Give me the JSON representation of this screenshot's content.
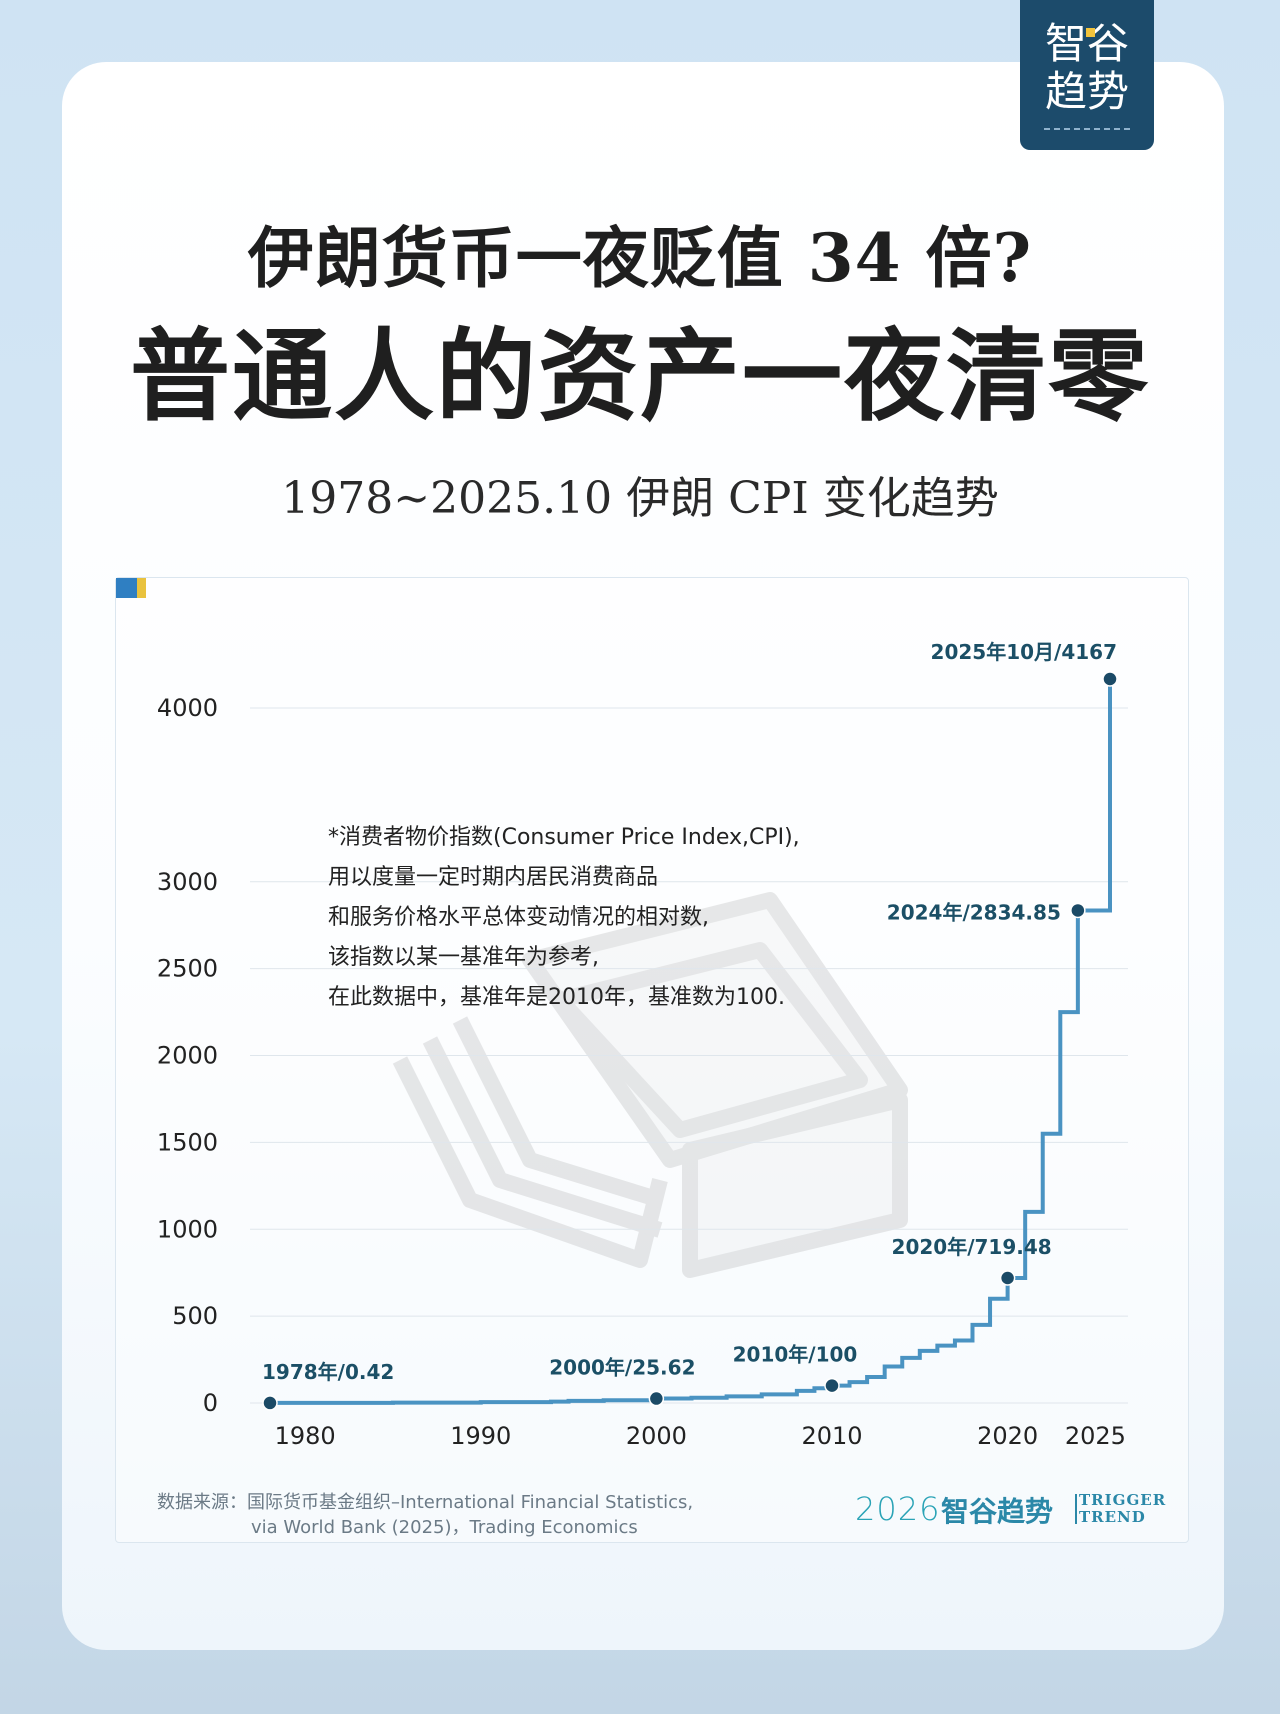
{
  "header": {
    "logo": {
      "line1": "智谷",
      "line2": "趋势"
    },
    "title_line1": "伊朗货币一夜贬值 34 倍?",
    "title_line2": "普通人的资产一夜清零",
    "subtitle": "1978~2025.10 伊朗 CPI 变化趋势"
  },
  "note": {
    "lines": [
      "*消费者物价指数(Consumer Price Index,CPI),",
      "用以度量一定时期内居民消费商品",
      "和服务价格水平总体变动情况的相对数,",
      "该指数以某一基准年为参考,",
      "在此数据中，基准年是2010年，基准数为100."
    ]
  },
  "footer": {
    "source_line1": "数据来源：国际货币基金组织–International Financial Statistics,",
    "source_line2": "via World Bank (2025)，Trading Economics",
    "brand_year": "2026",
    "brand_name": "智谷趋势",
    "brand_en_1": "TRIGGER",
    "brand_en_2": "TREND"
  },
  "colors": {
    "line": "#4a93c2",
    "marker": "#1b4a66",
    "label": "#1b4f66",
    "grid": "#dfe6ec",
    "accent": "#2f7fc2"
  },
  "chart_data": {
    "type": "line",
    "step": true,
    "title": "1978~2025.10 伊朗 CPI 变化趋势",
    "xlabel": "",
    "ylabel": "",
    "x_ticks": [
      1980,
      1990,
      2000,
      2010,
      2020,
      2025
    ],
    "x_tick_labels": [
      "1980",
      "1990",
      "2000",
      "2010",
      "2020",
      "2025"
    ],
    "y_ticks": [
      0,
      500,
      1000,
      1500,
      2000,
      2500,
      3000,
      4000
    ],
    "y_tick_labels": [
      "0",
      "500",
      "1000",
      "1500",
      "2000",
      "2500",
      "3000",
      "4000"
    ],
    "xlim": [
      1978,
      2025.83
    ],
    "ylim": [
      0,
      4167
    ],
    "grid": true,
    "x": [
      1978,
      1980,
      1985,
      1990,
      1994,
      1995,
      1997,
      2000,
      2002,
      2004,
      2006,
      2008,
      2009,
      2010,
      2011,
      2012,
      2013,
      2014,
      2015,
      2016,
      2017,
      2018,
      2019,
      2020,
      2021,
      2022,
      2023,
      2024,
      2025.83
    ],
    "values": [
      0.42,
      1,
      2,
      5,
      8,
      12,
      16,
      25.62,
      30,
      38,
      50,
      70,
      85,
      100,
      120,
      150,
      210,
      260,
      300,
      330,
      360,
      450,
      600,
      719.48,
      1100,
      1550,
      2250,
      2834.85,
      4167
    ],
    "highlights": [
      {
        "x": 1978,
        "y": 0.42,
        "label": "1978年/0.42"
      },
      {
        "x": 2000,
        "y": 25.62,
        "label": "2000年/25.62"
      },
      {
        "x": 2010,
        "y": 100,
        "label": "2010年/100"
      },
      {
        "x": 2020,
        "y": 719.48,
        "label": "2020年/719.48"
      },
      {
        "x": 2024,
        "y": 2834.85,
        "label": "2024年/2834.85"
      },
      {
        "x": 2025.83,
        "y": 4167,
        "label": "2025年10月/4167"
      }
    ]
  }
}
